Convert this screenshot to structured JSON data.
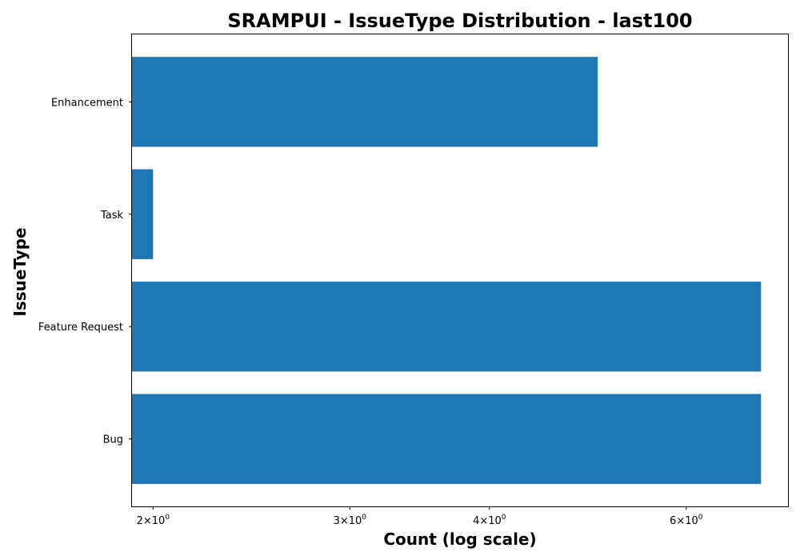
{
  "chart_data": {
    "type": "bar",
    "orientation": "horizontal",
    "title": "SRAMPUI - IssueType Distribution - last100",
    "xlabel": "Count (log scale)",
    "ylabel": "IssueType",
    "x_scale": "log",
    "xlim": [
      1.915,
      7.4
    ],
    "categories": [
      "Bug",
      "Feature Request",
      "Task",
      "Enhancement"
    ],
    "values": [
      7,
      7,
      2,
      5
    ],
    "x_ticks": [
      {
        "value": 2,
        "mantissa": "2",
        "base": "10",
        "exponent": "0"
      },
      {
        "value": 3,
        "mantissa": "3",
        "base": "10",
        "exponent": "0"
      },
      {
        "value": 4,
        "mantissa": "4",
        "base": "10",
        "exponent": "0"
      },
      {
        "value": 6,
        "mantissa": "6",
        "base": "10",
        "exponent": "0"
      }
    ],
    "bar_color": "#1f77b4",
    "grid": false,
    "legend": "none"
  }
}
